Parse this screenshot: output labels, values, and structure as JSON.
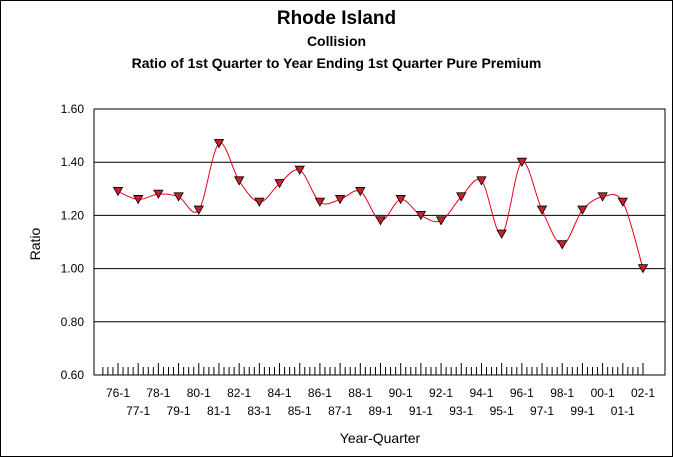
{
  "chart_data": {
    "type": "line",
    "title": "Rhode Island",
    "subtitle": "Collision",
    "subtitle2": "Ratio of 1st Quarter to Year Ending 1st Quarter Pure Premium",
    "xlabel": "Year-Quarter",
    "ylabel": "Ratio",
    "ylim": [
      0.6,
      1.6
    ],
    "y_ticks": [
      "0.60",
      "0.80",
      "1.00",
      "1.20",
      "1.40",
      "1.60"
    ],
    "grid": "horizontal",
    "legend": "none",
    "categories": [
      "76-1",
      "77-1",
      "78-1",
      "79-1",
      "80-1",
      "81-1",
      "82-1",
      "83-1",
      "84-1",
      "85-1",
      "86-1",
      "87-1",
      "88-1",
      "89-1",
      "90-1",
      "91-1",
      "92-1",
      "93-1",
      "94-1",
      "95-1",
      "96-1",
      "97-1",
      "98-1",
      "99-1",
      "00-1",
      "01-1",
      "02-1"
    ],
    "series": [
      {
        "values": [
          1.29,
          1.26,
          1.28,
          1.27,
          1.22,
          1.47,
          1.33,
          1.25,
          1.32,
          1.37,
          1.25,
          1.26,
          1.29,
          1.18,
          1.26,
          1.2,
          1.18,
          1.27,
          1.33,
          1.13,
          1.4,
          1.22,
          1.09,
          1.22,
          1.27,
          1.25,
          1.0
        ],
        "color": "#e8001c",
        "marker": "triangle-down",
        "marker_fill": "#c8202a"
      }
    ]
  }
}
